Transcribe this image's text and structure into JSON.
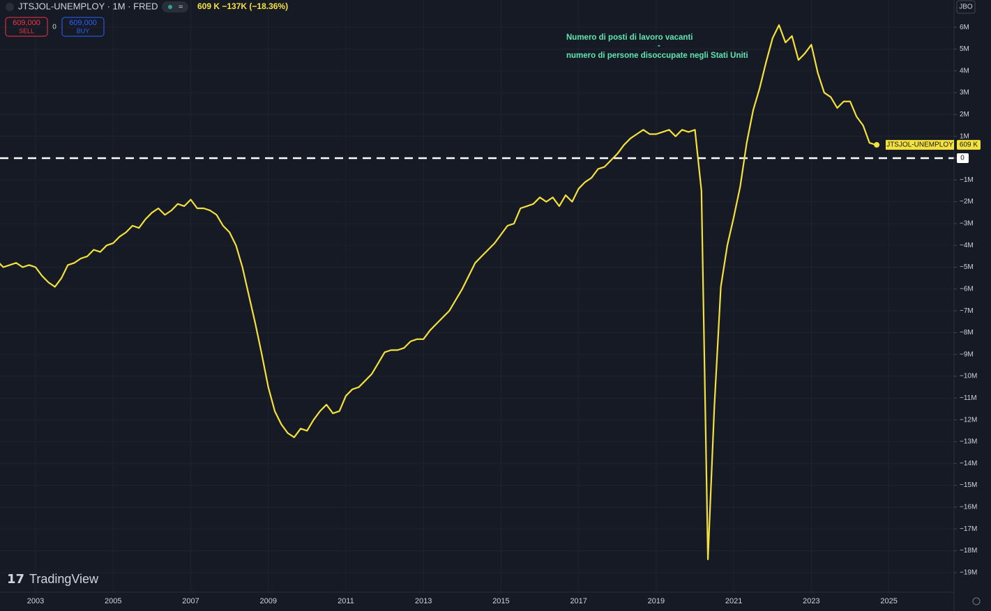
{
  "header": {
    "symbol": "JTSJOL-UNEMPLOY · 1M · FRED",
    "change": "609 K  −137K (−18.36%)",
    "sell_price": "609,000",
    "sell_label": "SELL",
    "spread": "0",
    "buy_price": "609,000",
    "buy_label": "BUY",
    "account": "JBO",
    "logo": "TradingView"
  },
  "chart_data": {
    "type": "line",
    "annotation": [
      "Numero di posti di lavoro vacanti",
      "-",
      "numero di persone disoccupate negli Stati Uniti"
    ],
    "categories": [
      null,
      null,
      null,
      null,
      null,
      null,
      "2003",
      null,
      null,
      null,
      null,
      null,
      null,
      null,
      null,
      null,
      null,
      null,
      "2005",
      null,
      null,
      null,
      null,
      null,
      null,
      null,
      null,
      null,
      null,
      null,
      "2007",
      null,
      null,
      null,
      null,
      null,
      null,
      null,
      null,
      null,
      null,
      null,
      "2009",
      null,
      null,
      null,
      null,
      null,
      null,
      null,
      null,
      null,
      null,
      null,
      "2011",
      null,
      null,
      null,
      null,
      null,
      null,
      null,
      null,
      null,
      null,
      null,
      "2013",
      null,
      null,
      null,
      null,
      null,
      null,
      null,
      null,
      null,
      null,
      null,
      "2015",
      null,
      null,
      null,
      null,
      null,
      null,
      null,
      null,
      null,
      null,
      null,
      "2017",
      null,
      null,
      null,
      null,
      null,
      null,
      null,
      null,
      null,
      null,
      null,
      "2019",
      null,
      null,
      null,
      null,
      null,
      null,
      null,
      null,
      null,
      null,
      null,
      "2021",
      null,
      null,
      null,
      null,
      null,
      null,
      null,
      null,
      null,
      null,
      null,
      "2023",
      null,
      null,
      null,
      null,
      null,
      null,
      null,
      null,
      null,
      null,
      null,
      "2025"
    ],
    "series": [
      {
        "name": "JTSJOL-UNEMPLOY",
        "color": "#f5e13c",
        "last_label": "609 K",
        "values": [
          -4.7,
          -5.0,
          -4.9,
          -4.8,
          -5.0,
          -4.9,
          -5.0,
          -5.4,
          -5.7,
          -5.9,
          -5.5,
          -4.9,
          -4.8,
          -4.6,
          -4.5,
          -4.2,
          -4.3,
          -4.0,
          -3.9,
          -3.6,
          -3.4,
          -3.1,
          -3.2,
          -2.8,
          -2.5,
          -2.3,
          -2.6,
          -2.4,
          -2.1,
          -2.2,
          -1.9,
          -2.3,
          -2.3,
          -2.4,
          -2.6,
          -3.1,
          -3.4,
          -4.0,
          -5.0,
          -6.3,
          -7.6,
          -9.0,
          -10.5,
          -11.6,
          -12.2,
          -12.6,
          -12.8,
          -12.4,
          -12.5,
          -12.0,
          -11.6,
          -11.3,
          -11.7,
          -11.6,
          -10.9,
          -10.6,
          -10.5,
          -10.2,
          -9.9,
          -9.4,
          -8.9,
          -8.8,
          -8.8,
          -8.7,
          -8.4,
          -8.3,
          -8.3,
          -7.9,
          -7.6,
          -7.3,
          -7.0,
          -6.5,
          -6.0,
          -5.4,
          -4.8,
          -4.5,
          -4.2,
          -3.9,
          -3.5,
          -3.1,
          -3.0,
          -2.3,
          -2.2,
          -2.1,
          -1.8,
          -2.0,
          -1.8,
          -2.2,
          -1.7,
          -2.0,
          -1.4,
          -1.1,
          -0.9,
          -0.5,
          -0.4,
          -0.1,
          0.2,
          0.6,
          0.9,
          1.1,
          1.3,
          1.1,
          1.1,
          1.2,
          1.3,
          1.0,
          1.3,
          1.2,
          1.3,
          -1.5,
          -18.4,
          -11.4,
          -5.9,
          -4.0,
          -2.7,
          -1.3,
          0.7,
          2.2,
          3.2,
          4.4,
          5.5,
          6.1,
          5.3,
          5.6,
          4.5,
          4.8,
          5.2,
          3.9,
          3.0,
          2.8,
          2.3,
          2.6,
          2.6,
          1.9,
          1.5,
          0.7,
          0.609,
          null,
          null
        ]
      }
    ],
    "hline": 0,
    "ylim": [
      -19.9,
      7.25
    ],
    "yticks": [
      {
        "value": 6,
        "label": "6M"
      },
      {
        "value": 5,
        "label": "5M"
      },
      {
        "value": 4,
        "label": "4M"
      },
      {
        "value": 3,
        "label": "3M"
      },
      {
        "value": 2,
        "label": "2M"
      },
      {
        "value": 1,
        "label": "1M"
      },
      0,
      {
        "value": -1,
        "label": "−1M"
      },
      {
        "value": -2,
        "label": "−2M"
      },
      {
        "value": -3,
        "label": "−3M"
      },
      {
        "value": -4,
        "label": "−4M"
      },
      {
        "value": -5,
        "label": "−5M"
      },
      {
        "value": -6,
        "label": "−6M"
      },
      {
        "value": -7,
        "label": "−7M"
      },
      {
        "value": -8,
        "label": "−8M"
      },
      {
        "value": -9,
        "label": "−9M"
      },
      {
        "value": -10,
        "label": "−10M"
      },
      {
        "value": -11,
        "label": "−11M"
      },
      {
        "value": -12,
        "label": "−12M"
      },
      {
        "value": -13,
        "label": "−13M"
      },
      {
        "value": -14,
        "label": "−14M"
      },
      {
        "value": -15,
        "label": "−15M"
      },
      {
        "value": -16,
        "label": "−16M"
      },
      {
        "value": -17,
        "label": "−17M"
      },
      {
        "value": -18,
        "label": "−18M"
      },
      {
        "value": -19,
        "label": "−19M"
      }
    ],
    "grid": true
  }
}
